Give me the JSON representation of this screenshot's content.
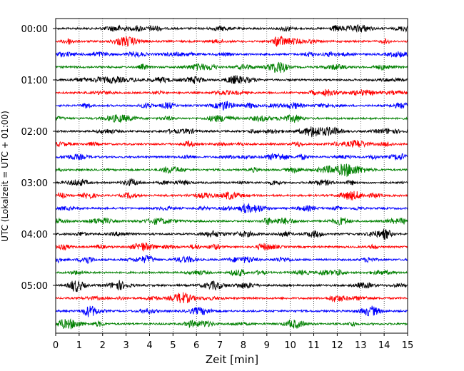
{
  "chart_data": {
    "type": "line",
    "title": "",
    "xlabel": "Zeit  [min]",
    "ylabel": "UTC (Lokalzeit = UTC + 01:00)",
    "xlim": [
      0,
      15
    ],
    "x_ticks": [
      "0",
      "1",
      "2",
      "3",
      "4",
      "5",
      "6",
      "7",
      "8",
      "9",
      "10",
      "11",
      "12",
      "13",
      "14",
      "15"
    ],
    "y_ticks": [
      "00:00",
      "01:00",
      "02:00",
      "03:00",
      "04:00",
      "05:00"
    ],
    "grid": "vertical dotted at each minute",
    "trace_interval_minutes": 15,
    "trace_count": 24,
    "trace_colors": [
      "#000000",
      "#ff0000",
      "#0000ff",
      "#008000"
    ],
    "traces": [
      {
        "start": "00:00",
        "color": "#000000"
      },
      {
        "start": "00:15",
        "color": "#ff0000"
      },
      {
        "start": "00:30",
        "color": "#0000ff"
      },
      {
        "start": "00:45",
        "color": "#008000"
      },
      {
        "start": "01:00",
        "color": "#000000"
      },
      {
        "start": "01:15",
        "color": "#ff0000"
      },
      {
        "start": "01:30",
        "color": "#0000ff"
      },
      {
        "start": "01:45",
        "color": "#008000"
      },
      {
        "start": "02:00",
        "color": "#000000"
      },
      {
        "start": "02:15",
        "color": "#ff0000"
      },
      {
        "start": "02:30",
        "color": "#0000ff"
      },
      {
        "start": "02:45",
        "color": "#008000"
      },
      {
        "start": "03:00",
        "color": "#000000"
      },
      {
        "start": "03:15",
        "color": "#ff0000"
      },
      {
        "start": "03:30",
        "color": "#0000ff"
      },
      {
        "start": "03:45",
        "color": "#008000"
      },
      {
        "start": "04:00",
        "color": "#000000"
      },
      {
        "start": "04:15",
        "color": "#ff0000"
      },
      {
        "start": "04:30",
        "color": "#0000ff"
      },
      {
        "start": "04:45",
        "color": "#008000"
      },
      {
        "start": "05:00",
        "color": "#000000"
      },
      {
        "start": "05:15",
        "color": "#ff0000"
      },
      {
        "start": "05:30",
        "color": "#0000ff"
      },
      {
        "start": "05:45",
        "color": "#008000"
      }
    ]
  }
}
